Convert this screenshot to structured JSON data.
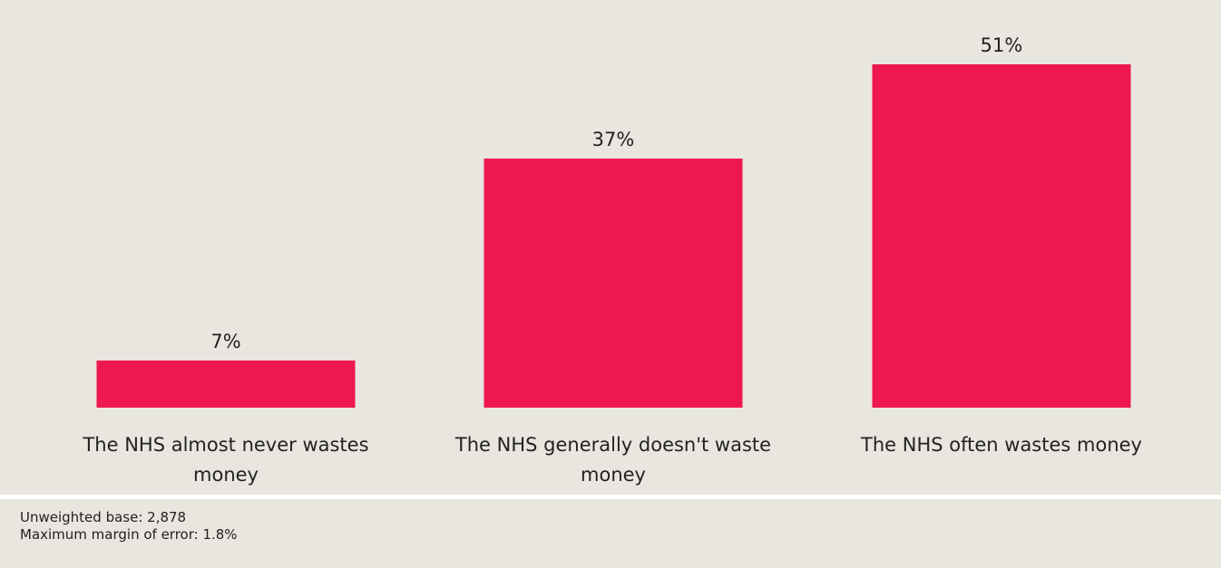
{
  "chart_data": {
    "type": "bar",
    "categories": [
      "The NHS almost never wastes money",
      "The NHS generally doesn't waste money",
      "The NHS often wastes money"
    ],
    "category_label_lines": [
      [
        "The NHS almost never wastes",
        "money"
      ],
      [
        "The NHS generally doesn't waste",
        "money"
      ],
      [
        "The NHS often wastes money"
      ]
    ],
    "values": [
      7,
      37,
      51
    ],
    "value_labels": [
      "7%",
      "37%",
      "51%"
    ],
    "unit": "%",
    "title": "",
    "xlabel": "",
    "ylabel": "",
    "ylim": [
      0,
      51
    ],
    "grid": false,
    "bar_color": "#ee1850"
  },
  "footnote": {
    "base": "Unweighted base: 2,878",
    "margin": "Maximum margin of error: 1.8%"
  },
  "colors": {
    "background": "#e9e5df",
    "bar": "#ee1850",
    "text": "#222222"
  }
}
